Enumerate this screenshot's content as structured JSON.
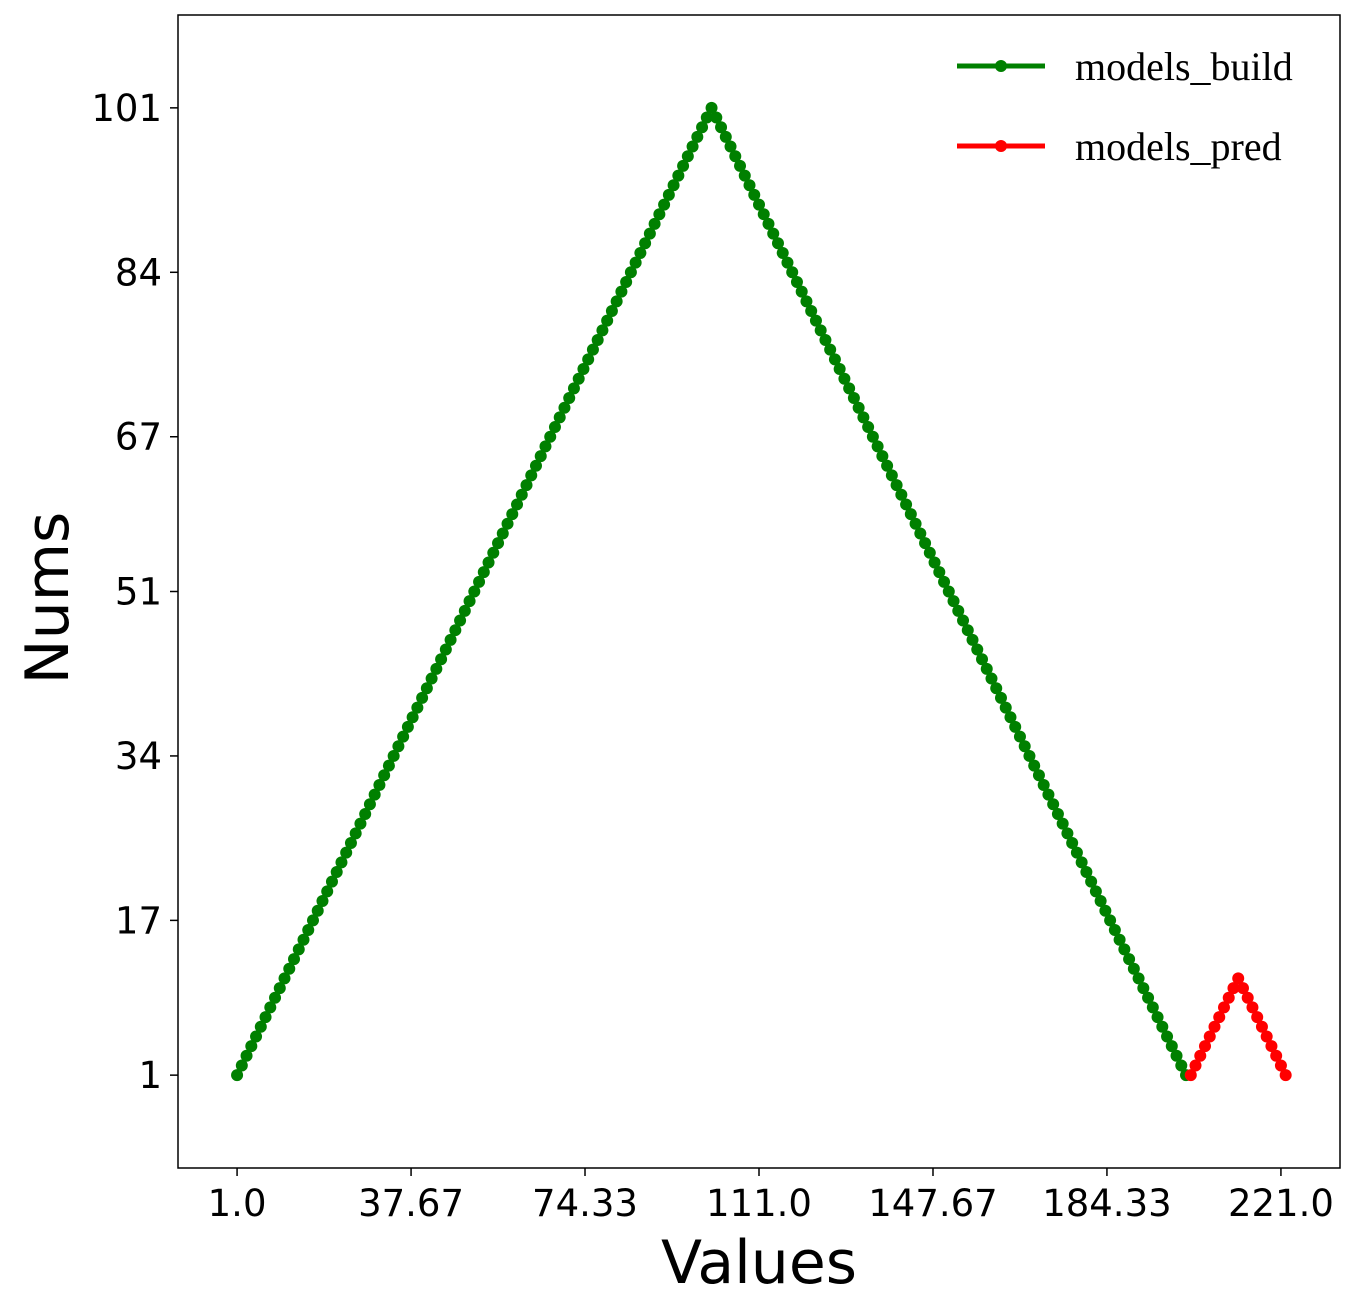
{
  "chart_data": {
    "type": "line",
    "xlabel": "Values",
    "ylabel": "Nums",
    "xlim": [
      -11.45,
      233.45
    ],
    "ylim": [
      -8.6,
      110.6
    ],
    "x_ticks": [
      1.0,
      37.67,
      74.33,
      111.0,
      147.67,
      184.33,
      221.0
    ],
    "x_tick_labels": [
      "1.0",
      "37.67",
      "74.33",
      "111.0",
      "147.67",
      "184.33",
      "221.0"
    ],
    "y_ticks": [
      1,
      17,
      34,
      51,
      67,
      84,
      101
    ],
    "y_tick_labels": [
      "1",
      "17",
      "34",
      "51",
      "67",
      "84",
      "101"
    ],
    "grid": false,
    "legend_position": "top-right",
    "series": [
      {
        "name": "models_build",
        "color": "#008000",
        "marker": "circle",
        "x_start": 1,
        "x_step": 1,
        "values": [
          1,
          2,
          3,
          4,
          5,
          6,
          7,
          8,
          9,
          10,
          11,
          12,
          13,
          14,
          15,
          16,
          17,
          18,
          19,
          20,
          21,
          22,
          23,
          24,
          25,
          26,
          27,
          28,
          29,
          30,
          31,
          32,
          33,
          34,
          35,
          36,
          37,
          38,
          39,
          40,
          41,
          42,
          43,
          44,
          45,
          46,
          47,
          48,
          49,
          50,
          51,
          52,
          53,
          54,
          55,
          56,
          57,
          58,
          59,
          60,
          61,
          62,
          63,
          64,
          65,
          66,
          67,
          68,
          69,
          70,
          71,
          72,
          73,
          74,
          75,
          76,
          77,
          78,
          79,
          80,
          81,
          82,
          83,
          84,
          85,
          86,
          87,
          88,
          89,
          90,
          91,
          92,
          93,
          94,
          95,
          96,
          97,
          98,
          99,
          100,
          101,
          100,
          99,
          98,
          97,
          96,
          95,
          94,
          93,
          92,
          91,
          90,
          89,
          88,
          87,
          86,
          85,
          84,
          83,
          82,
          81,
          80,
          79,
          78,
          77,
          76,
          75,
          74,
          73,
          72,
          71,
          70,
          69,
          68,
          67,
          66,
          65,
          64,
          63,
          62,
          61,
          60,
          59,
          58,
          57,
          56,
          55,
          54,
          53,
          52,
          51,
          50,
          49,
          48,
          47,
          46,
          45,
          44,
          43,
          42,
          41,
          40,
          39,
          38,
          37,
          36,
          35,
          34,
          33,
          32,
          31,
          30,
          29,
          28,
          27,
          26,
          25,
          24,
          23,
          22,
          21,
          20,
          19,
          18,
          17,
          16,
          15,
          14,
          13,
          12,
          11,
          10,
          9,
          8,
          7,
          6,
          5,
          4,
          3,
          2,
          1
        ]
      },
      {
        "name": "models_pred",
        "color": "#ff0000",
        "marker": "circle",
        "x_start": 202,
        "x_step": 1,
        "values": [
          1,
          2,
          3,
          4,
          5,
          6,
          7,
          8,
          9,
          10,
          11,
          10,
          9,
          8,
          7,
          6,
          5,
          4,
          3,
          2,
          1
        ]
      }
    ]
  }
}
